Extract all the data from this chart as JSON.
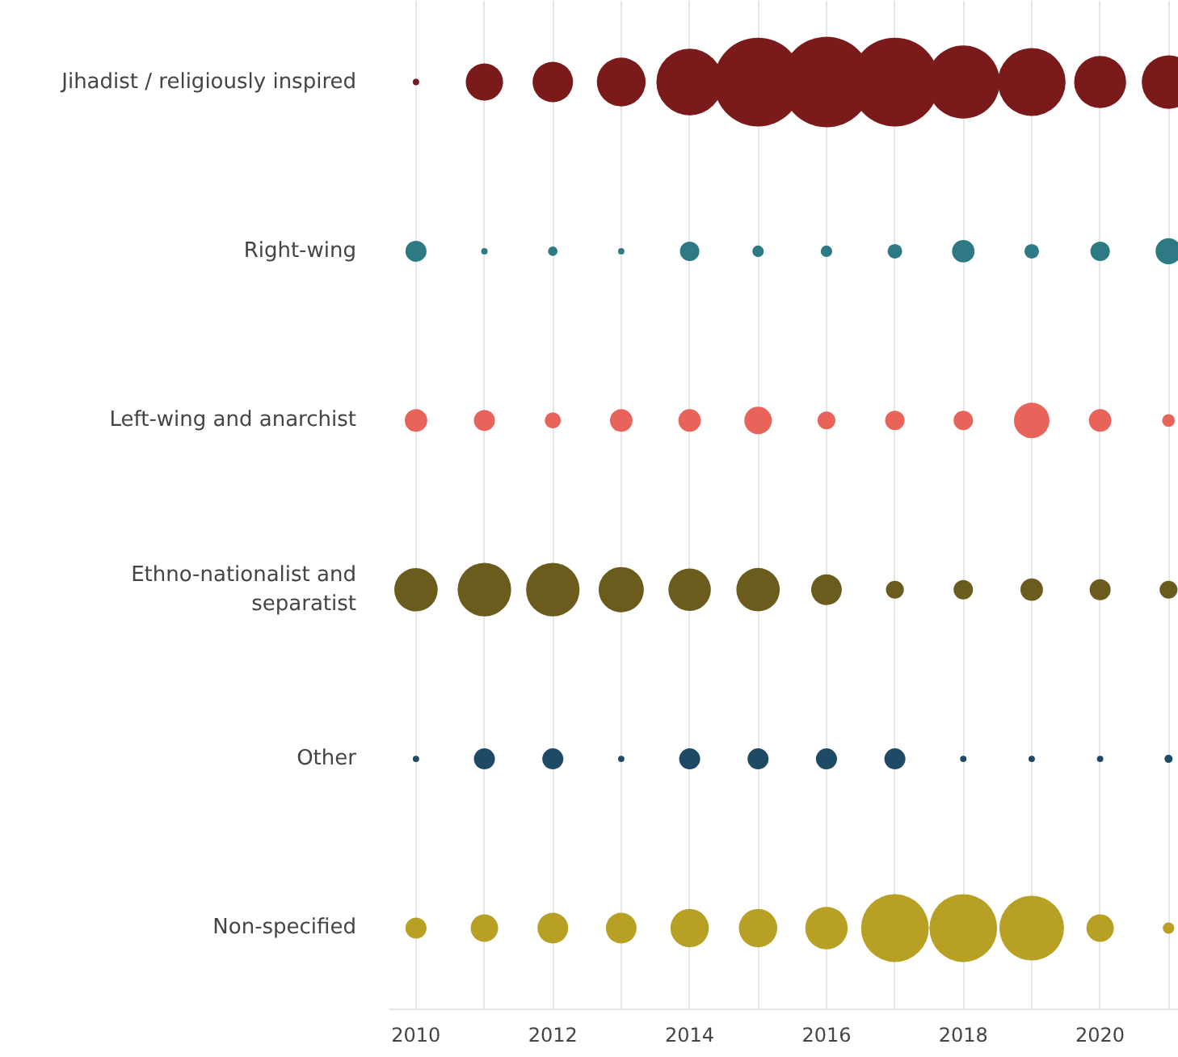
{
  "chart_data": {
    "type": "bubble",
    "orientation": "horizontal",
    "grid": "x",
    "categories": [
      "Jihadist / religiously inspired",
      "Right-wing",
      "Left-wing and anarchist",
      "Ethno-nationalist and separatist",
      "Other",
      "Non-specified"
    ],
    "xlim": [
      2009.6,
      2021.15
    ],
    "xticks": [
      2010,
      {
        "value": 2011,
        "label": null
      },
      2012,
      {
        "value": 2013,
        "label": null
      },
      2014,
      {
        "value": 2015,
        "label": null
      },
      2016,
      {
        "value": 2017,
        "label": null
      },
      2018,
      {
        "value": 2019,
        "label": null
      },
      2020,
      {
        "value": 2021,
        "label": null
      }
    ],
    "series": [
      {
        "values": [
          2010,
          2010,
          2010,
          2010,
          2010,
          2010
        ],
        "sizes": [
          0.005,
          0.054,
          0.062,
          0.23,
          0.005,
          0.054
        ],
        "colors": [
          "#7b1a1a",
          "#2e7a84",
          "#e8645a",
          "#6b5c1e",
          "#1f4a66",
          "#b8a024"
        ]
      },
      {
        "values": [
          2011,
          2011,
          2011,
          2011,
          2011,
          2011
        ],
        "sizes": [
          0.17,
          0.005,
          0.054,
          0.35,
          0.054,
          0.092
        ],
        "colors": [
          "#7b1a1a",
          "#2e7a84",
          "#e8645a",
          "#6b5c1e",
          "#1f4a66",
          "#b8a024"
        ]
      },
      {
        "values": [
          2012,
          2012,
          2012,
          2012,
          2012,
          2012
        ],
        "sizes": [
          0.2,
          0.011,
          0.032,
          0.35,
          0.054,
          0.115
        ],
        "colors": [
          "#7b1a1a",
          "#2e7a84",
          "#e8645a",
          "#6b5c1e",
          "#1f4a66",
          "#b8a024"
        ]
      },
      {
        "values": [
          2013,
          2013,
          2013,
          2013,
          2013,
          2013
        ],
        "sizes": [
          0.29,
          0.005,
          0.062,
          0.25,
          0.005,
          0.115
        ],
        "colors": [
          "#7b1a1a",
          "#2e7a84",
          "#e8645a",
          "#6b5c1e",
          "#1f4a66",
          "#b8a024"
        ]
      },
      {
        "values": [
          2014,
          2014,
          2014,
          2014,
          2014,
          2014
        ],
        "sizes": [
          0.54,
          0.046,
          0.062,
          0.22,
          0.054,
          0.18
        ],
        "colors": [
          "#7b1a1a",
          "#2e7a84",
          "#e8645a",
          "#6b5c1e",
          "#1f4a66",
          "#b8a024"
        ]
      },
      {
        "values": [
          2015,
          2015,
          2015,
          2015,
          2015,
          2015
        ],
        "sizes": [
          0.96,
          0.016,
          0.092,
          0.23,
          0.054,
          0.18
        ],
        "colors": [
          "#7b1a1a",
          "#2e7a84",
          "#e8645a",
          "#6b5c1e",
          "#1f4a66",
          "#b8a024"
        ]
      },
      {
        "values": [
          2016,
          2016,
          2016,
          2016,
          2016,
          2016
        ],
        "sizes": [
          1,
          0.016,
          0.039,
          0.115,
          0.054,
          0.22
        ],
        "colors": [
          "#7b1a1a",
          "#2e7a84",
          "#e8645a",
          "#6b5c1e",
          "#1f4a66",
          "#b8a024"
        ]
      },
      {
        "values": [
          2017,
          2017,
          2017,
          2017,
          2017,
          2017
        ],
        "sizes": [
          0.96,
          0.026,
          0.046,
          0.039,
          0.054,
          0.56
        ],
        "colors": [
          "#7b1a1a",
          "#2e7a84",
          "#e8645a",
          "#6b5c1e",
          "#1f4a66",
          "#b8a024"
        ]
      },
      {
        "values": [
          2018,
          2018,
          2018,
          2018,
          2018,
          2018
        ],
        "sizes": [
          0.65,
          0.062,
          0.046,
          0.046,
          0.005,
          0.56
        ],
        "colors": [
          "#7b1a1a",
          "#2e7a84",
          "#e8645a",
          "#6b5c1e",
          "#1f4a66",
          "#b8a024"
        ]
      },
      {
        "values": [
          2019,
          2019,
          2019,
          2019,
          2019,
          2019
        ],
        "sizes": [
          0.56,
          0.026,
          0.154,
          0.062,
          0.005,
          0.51
        ],
        "colors": [
          "#7b1a1a",
          "#2e7a84",
          "#e8645a",
          "#6b5c1e",
          "#1f4a66",
          "#b8a024"
        ]
      },
      {
        "values": [
          2020,
          2020,
          2020,
          2020,
          2020,
          2020
        ],
        "sizes": [
          0.33,
          0.046,
          0.062,
          0.054,
          0.005,
          0.092
        ],
        "colors": [
          "#7b1a1a",
          "#2e7a84",
          "#e8645a",
          "#6b5c1e",
          "#1f4a66",
          "#b8a024"
        ]
      },
      {
        "values": [
          2021,
          2021,
          2021,
          2021,
          2021,
          2021
        ],
        "sizes": [
          0.35,
          0.082,
          0.02,
          0.039,
          0.008,
          0.016
        ],
        "colors": [
          "#7b1a1a",
          "#2e7a84",
          "#e8645a",
          "#6b5c1e",
          "#1f4a66",
          "#b8a024"
        ]
      }
    ]
  }
}
